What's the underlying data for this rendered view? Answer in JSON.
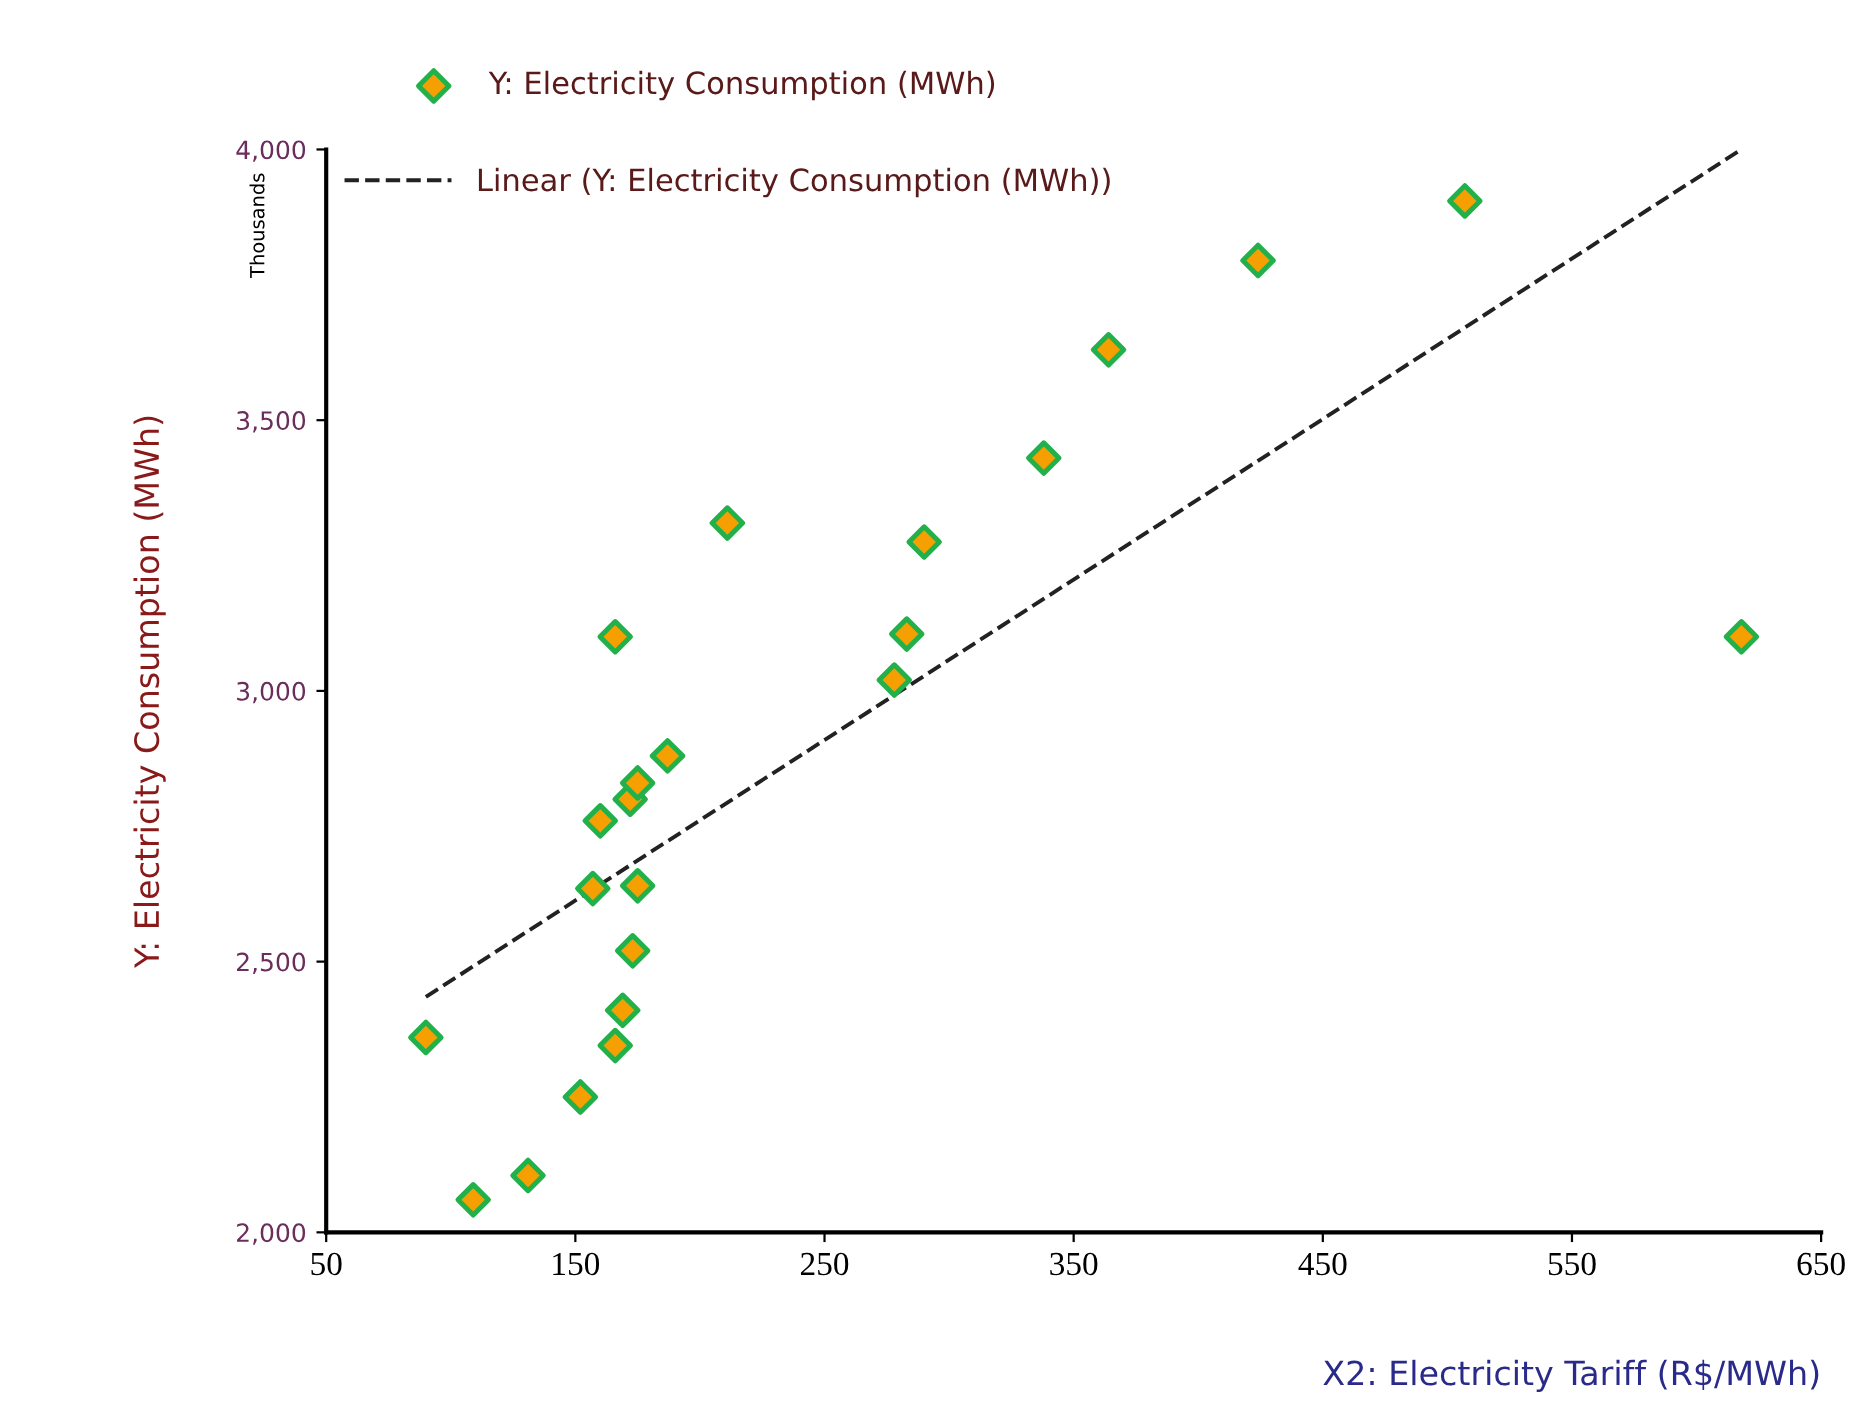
{
  "chart_data": {
    "type": "scatter",
    "xlabel": "X2: Electricity Tariff (R$/MWh)",
    "ylabel": "Y: Electricity Consumption (MWh)",
    "annotations": [
      "Thousands"
    ],
    "series": [
      {
        "name": "Y: Electricity Consumption (MWh)",
        "marker": "diamond",
        "color": "#f5a000",
        "x": [
          90,
          109,
          131,
          152,
          157,
          160,
          166,
          166,
          169,
          172,
          173,
          175,
          175,
          187,
          211,
          278,
          283,
          290,
          338,
          364,
          424,
          507,
          618
        ],
        "values": [
          2360,
          2060,
          2105,
          2250,
          2635,
          2760,
          3100,
          2345,
          2410,
          2800,
          2520,
          2830,
          2640,
          2880,
          3310,
          3020,
          3105,
          3275,
          3430,
          3630,
          3795,
          3905,
          3100
        ]
      },
      {
        "name": "Linear (Y: Electricity Consumption (MWh))",
        "type": "line",
        "line_style": "dashed",
        "color": "#222222",
        "x": [
          90,
          618
        ],
        "values": [
          2435,
          4000
        ]
      }
    ],
    "xlim": [
      50,
      650
    ],
    "xticks": [
      50,
      150,
      250,
      350,
      450,
      550,
      650
    ],
    "ylim": [
      2000,
      4000
    ],
    "yticks": [
      {
        "value": 2000,
        "label": "2,000"
      },
      {
        "value": 2500,
        "label": "2,500"
      },
      {
        "value": 3000,
        "label": "3,000"
      },
      {
        "value": 3500,
        "label": "3,500"
      },
      {
        "value": 4000,
        "label": "4,000"
      }
    ],
    "grid": false,
    "legend": "top"
  }
}
